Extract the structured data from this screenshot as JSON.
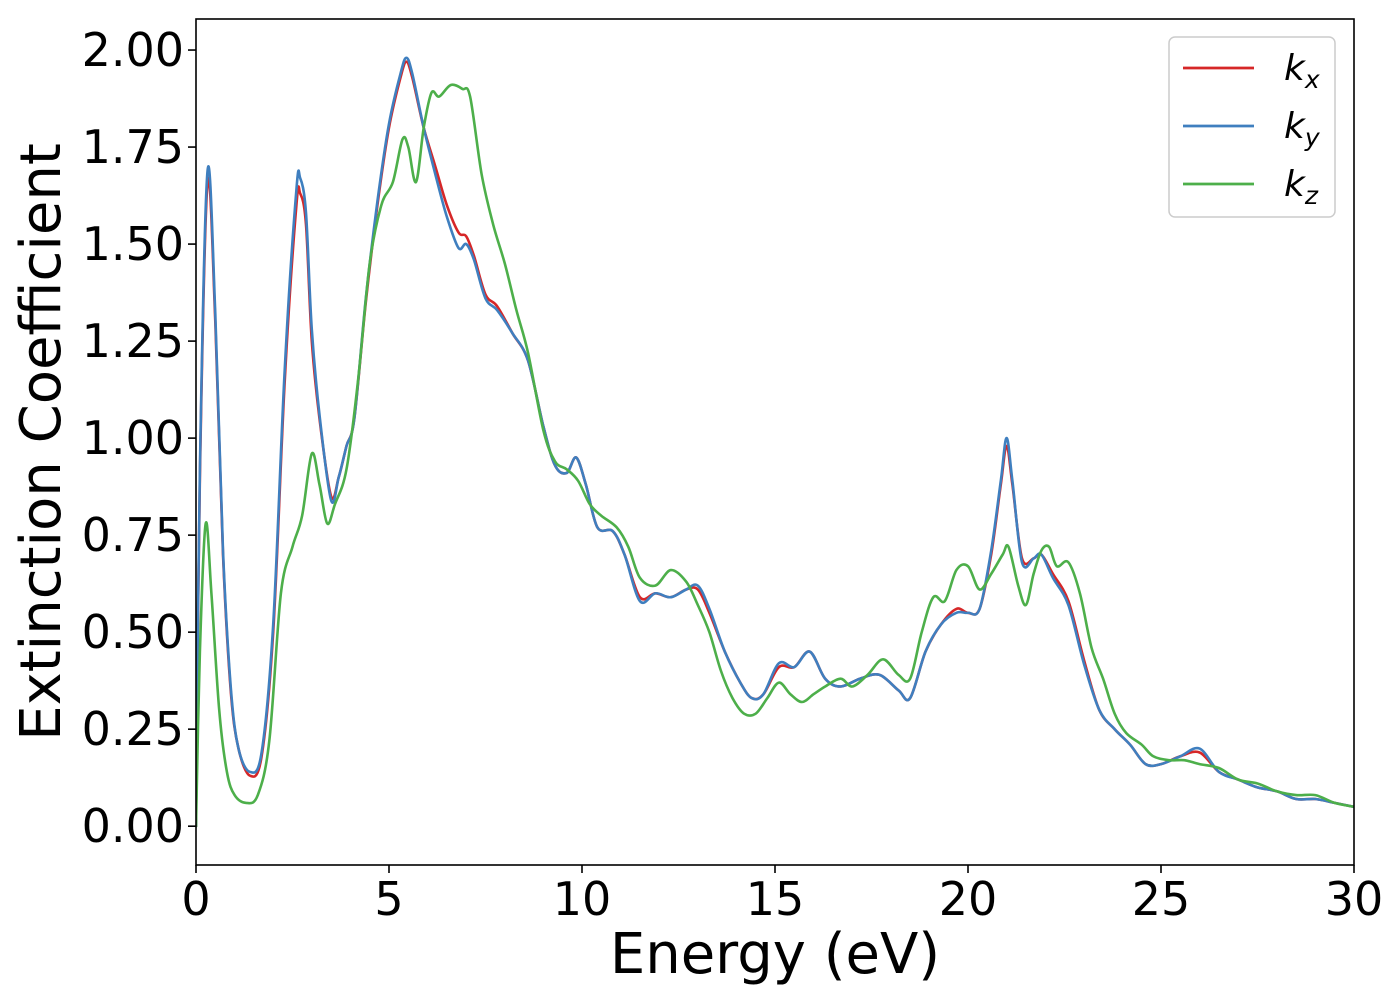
{
  "chart_data": {
    "type": "line",
    "title": "",
    "xlabel": "Energy (eV)",
    "ylabel": "Extinction Coefficient",
    "xlim": [
      0,
      30
    ],
    "ylim": [
      -0.1,
      2.08
    ],
    "xticks": [
      "0",
      "5",
      "10",
      "15",
      "20",
      "25",
      "30"
    ],
    "yticks": [
      "0.00",
      "0.25",
      "0.50",
      "0.75",
      "1.00",
      "1.25",
      "1.50",
      "1.75",
      "2.00"
    ],
    "grid": false,
    "legend_position": "top-right",
    "series": [
      {
        "name": "k",
        "subscript": "x",
        "color": "#d62728",
        "points": [
          [
            0,
            0
          ],
          [
            0.1,
            0.9
          ],
          [
            0.3,
            1.66
          ],
          [
            0.5,
            1.3
          ],
          [
            0.7,
            0.7
          ],
          [
            0.9,
            0.35
          ],
          [
            1.1,
            0.2
          ],
          [
            1.4,
            0.13
          ],
          [
            1.7,
            0.18
          ],
          [
            2.0,
            0.5
          ],
          [
            2.3,
            1.15
          ],
          [
            2.6,
            1.6
          ],
          [
            2.7,
            1.63
          ],
          [
            2.85,
            1.55
          ],
          [
            3.0,
            1.25
          ],
          [
            3.2,
            1.05
          ],
          [
            3.5,
            0.85
          ],
          [
            3.7,
            0.9
          ],
          [
            3.9,
            0.98
          ],
          [
            4.1,
            1.05
          ],
          [
            4.4,
            1.35
          ],
          [
            4.7,
            1.6
          ],
          [
            5.0,
            1.8
          ],
          [
            5.3,
            1.93
          ],
          [
            5.45,
            1.97
          ],
          [
            5.6,
            1.93
          ],
          [
            5.9,
            1.8
          ],
          [
            6.2,
            1.7
          ],
          [
            6.5,
            1.6
          ],
          [
            6.8,
            1.53
          ],
          [
            7.0,
            1.52
          ],
          [
            7.2,
            1.47
          ],
          [
            7.5,
            1.37
          ],
          [
            7.8,
            1.34
          ],
          [
            8.2,
            1.27
          ],
          [
            8.6,
            1.2
          ],
          [
            9.0,
            1.03
          ],
          [
            9.3,
            0.93
          ],
          [
            9.6,
            0.91
          ],
          [
            9.85,
            0.95
          ],
          [
            10.1,
            0.88
          ],
          [
            10.4,
            0.77
          ],
          [
            10.8,
            0.76
          ],
          [
            11.1,
            0.7
          ],
          [
            11.5,
            0.59
          ],
          [
            11.9,
            0.6
          ],
          [
            12.3,
            0.59
          ],
          [
            12.7,
            0.61
          ],
          [
            13.0,
            0.61
          ],
          [
            13.3,
            0.55
          ],
          [
            13.7,
            0.45
          ],
          [
            14.1,
            0.37
          ],
          [
            14.4,
            0.33
          ],
          [
            14.7,
            0.34
          ],
          [
            15.1,
            0.41
          ],
          [
            15.5,
            0.41
          ],
          [
            15.9,
            0.45
          ],
          [
            16.3,
            0.38
          ],
          [
            16.7,
            0.36
          ],
          [
            17.2,
            0.38
          ],
          [
            17.7,
            0.39
          ],
          [
            18.2,
            0.35
          ],
          [
            18.5,
            0.33
          ],
          [
            18.9,
            0.45
          ],
          [
            19.3,
            0.52
          ],
          [
            19.7,
            0.56
          ],
          [
            20.0,
            0.55
          ],
          [
            20.3,
            0.56
          ],
          [
            20.6,
            0.7
          ],
          [
            20.85,
            0.88
          ],
          [
            21.0,
            0.98
          ],
          [
            21.15,
            0.88
          ],
          [
            21.4,
            0.69
          ],
          [
            21.7,
            0.69
          ],
          [
            21.9,
            0.7
          ],
          [
            22.2,
            0.65
          ],
          [
            22.6,
            0.58
          ],
          [
            23.0,
            0.43
          ],
          [
            23.4,
            0.3
          ],
          [
            23.8,
            0.25
          ],
          [
            24.2,
            0.21
          ],
          [
            24.6,
            0.16
          ],
          [
            25.0,
            0.16
          ],
          [
            25.5,
            0.18
          ],
          [
            26.0,
            0.19
          ],
          [
            26.5,
            0.14
          ],
          [
            27.0,
            0.12
          ],
          [
            27.5,
            0.1
          ],
          [
            28.0,
            0.09
          ],
          [
            28.5,
            0.07
          ],
          [
            29.0,
            0.07
          ],
          [
            29.5,
            0.06
          ],
          [
            30.0,
            0.05
          ]
        ]
      },
      {
        "name": "k",
        "subscript": "y",
        "color": "#3f7fbf",
        "points": [
          [
            0,
            0
          ],
          [
            0.1,
            0.92
          ],
          [
            0.3,
            1.69
          ],
          [
            0.5,
            1.32
          ],
          [
            0.7,
            0.71
          ],
          [
            0.9,
            0.36
          ],
          [
            1.1,
            0.2
          ],
          [
            1.4,
            0.14
          ],
          [
            1.7,
            0.19
          ],
          [
            2.0,
            0.52
          ],
          [
            2.3,
            1.18
          ],
          [
            2.6,
            1.64
          ],
          [
            2.7,
            1.67
          ],
          [
            2.85,
            1.58
          ],
          [
            3.0,
            1.28
          ],
          [
            3.2,
            1.06
          ],
          [
            3.5,
            0.84
          ],
          [
            3.7,
            0.9
          ],
          [
            3.9,
            0.98
          ],
          [
            4.1,
            1.05
          ],
          [
            4.4,
            1.36
          ],
          [
            4.7,
            1.61
          ],
          [
            5.0,
            1.81
          ],
          [
            5.3,
            1.94
          ],
          [
            5.45,
            1.98
          ],
          [
            5.6,
            1.94
          ],
          [
            5.9,
            1.8
          ],
          [
            6.2,
            1.68
          ],
          [
            6.5,
            1.57
          ],
          [
            6.8,
            1.49
          ],
          [
            7.0,
            1.5
          ],
          [
            7.2,
            1.46
          ],
          [
            7.5,
            1.36
          ],
          [
            7.8,
            1.33
          ],
          [
            8.2,
            1.27
          ],
          [
            8.6,
            1.2
          ],
          [
            9.0,
            1.03
          ],
          [
            9.3,
            0.93
          ],
          [
            9.6,
            0.91
          ],
          [
            9.85,
            0.95
          ],
          [
            10.1,
            0.88
          ],
          [
            10.4,
            0.77
          ],
          [
            10.8,
            0.76
          ],
          [
            11.1,
            0.7
          ],
          [
            11.5,
            0.58
          ],
          [
            11.9,
            0.6
          ],
          [
            12.3,
            0.59
          ],
          [
            12.7,
            0.61
          ],
          [
            13.0,
            0.62
          ],
          [
            13.3,
            0.56
          ],
          [
            13.7,
            0.45
          ],
          [
            14.1,
            0.37
          ],
          [
            14.4,
            0.33
          ],
          [
            14.7,
            0.34
          ],
          [
            15.1,
            0.42
          ],
          [
            15.5,
            0.41
          ],
          [
            15.9,
            0.45
          ],
          [
            16.3,
            0.38
          ],
          [
            16.7,
            0.36
          ],
          [
            17.2,
            0.38
          ],
          [
            17.7,
            0.39
          ],
          [
            18.2,
            0.35
          ],
          [
            18.5,
            0.33
          ],
          [
            18.9,
            0.45
          ],
          [
            19.3,
            0.52
          ],
          [
            19.7,
            0.55
          ],
          [
            20.0,
            0.55
          ],
          [
            20.3,
            0.56
          ],
          [
            20.6,
            0.71
          ],
          [
            20.85,
            0.89
          ],
          [
            21.0,
            1.0
          ],
          [
            21.15,
            0.89
          ],
          [
            21.4,
            0.68
          ],
          [
            21.7,
            0.69
          ],
          [
            21.9,
            0.7
          ],
          [
            22.2,
            0.64
          ],
          [
            22.6,
            0.57
          ],
          [
            23.0,
            0.42
          ],
          [
            23.4,
            0.3
          ],
          [
            23.8,
            0.25
          ],
          [
            24.2,
            0.21
          ],
          [
            24.6,
            0.16
          ],
          [
            25.0,
            0.16
          ],
          [
            25.5,
            0.18
          ],
          [
            26.0,
            0.2
          ],
          [
            26.5,
            0.14
          ],
          [
            27.0,
            0.12
          ],
          [
            27.5,
            0.1
          ],
          [
            28.0,
            0.09
          ],
          [
            28.5,
            0.07
          ],
          [
            29.0,
            0.07
          ],
          [
            29.5,
            0.06
          ],
          [
            30.0,
            0.05
          ]
        ]
      },
      {
        "name": "k",
        "subscript": "z",
        "color": "#4daf4a",
        "points": [
          [
            0,
            0
          ],
          [
            0.1,
            0.45
          ],
          [
            0.25,
            0.78
          ],
          [
            0.4,
            0.6
          ],
          [
            0.6,
            0.3
          ],
          [
            0.8,
            0.14
          ],
          [
            1.0,
            0.08
          ],
          [
            1.3,
            0.06
          ],
          [
            1.6,
            0.08
          ],
          [
            1.9,
            0.22
          ],
          [
            2.2,
            0.6
          ],
          [
            2.5,
            0.72
          ],
          [
            2.75,
            0.8
          ],
          [
            3.0,
            0.96
          ],
          [
            3.2,
            0.88
          ],
          [
            3.4,
            0.78
          ],
          [
            3.6,
            0.83
          ],
          [
            3.9,
            0.92
          ],
          [
            4.2,
            1.15
          ],
          [
            4.5,
            1.45
          ],
          [
            4.8,
            1.6
          ],
          [
            5.1,
            1.66
          ],
          [
            5.35,
            1.77
          ],
          [
            5.5,
            1.75
          ],
          [
            5.7,
            1.66
          ],
          [
            5.9,
            1.8
          ],
          [
            6.1,
            1.89
          ],
          [
            6.3,
            1.88
          ],
          [
            6.6,
            1.91
          ],
          [
            6.9,
            1.9
          ],
          [
            7.1,
            1.88
          ],
          [
            7.4,
            1.68
          ],
          [
            7.7,
            1.55
          ],
          [
            8.0,
            1.45
          ],
          [
            8.3,
            1.33
          ],
          [
            8.6,
            1.22
          ],
          [
            9.0,
            1.02
          ],
          [
            9.3,
            0.94
          ],
          [
            9.6,
            0.92
          ],
          [
            9.9,
            0.89
          ],
          [
            10.2,
            0.83
          ],
          [
            10.5,
            0.8
          ],
          [
            10.9,
            0.77
          ],
          [
            11.2,
            0.72
          ],
          [
            11.5,
            0.64
          ],
          [
            11.9,
            0.62
          ],
          [
            12.3,
            0.66
          ],
          [
            12.7,
            0.63
          ],
          [
            13.0,
            0.57
          ],
          [
            13.3,
            0.5
          ],
          [
            13.6,
            0.4
          ],
          [
            13.9,
            0.33
          ],
          [
            14.2,
            0.29
          ],
          [
            14.5,
            0.29
          ],
          [
            14.8,
            0.33
          ],
          [
            15.1,
            0.37
          ],
          [
            15.4,
            0.34
          ],
          [
            15.7,
            0.32
          ],
          [
            16.0,
            0.34
          ],
          [
            16.3,
            0.36
          ],
          [
            16.7,
            0.38
          ],
          [
            17.0,
            0.36
          ],
          [
            17.4,
            0.39
          ],
          [
            17.8,
            0.43
          ],
          [
            18.2,
            0.39
          ],
          [
            18.5,
            0.38
          ],
          [
            18.8,
            0.5
          ],
          [
            19.1,
            0.59
          ],
          [
            19.4,
            0.58
          ],
          [
            19.7,
            0.66
          ],
          [
            20.0,
            0.67
          ],
          [
            20.3,
            0.61
          ],
          [
            20.6,
            0.65
          ],
          [
            20.9,
            0.7
          ],
          [
            21.05,
            0.72
          ],
          [
            21.3,
            0.62
          ],
          [
            21.5,
            0.57
          ],
          [
            21.7,
            0.65
          ],
          [
            21.9,
            0.71
          ],
          [
            22.1,
            0.72
          ],
          [
            22.3,
            0.67
          ],
          [
            22.6,
            0.68
          ],
          [
            22.9,
            0.6
          ],
          [
            23.2,
            0.46
          ],
          [
            23.5,
            0.38
          ],
          [
            23.8,
            0.29
          ],
          [
            24.1,
            0.24
          ],
          [
            24.5,
            0.21
          ],
          [
            24.8,
            0.18
          ],
          [
            25.2,
            0.17
          ],
          [
            25.6,
            0.17
          ],
          [
            26.0,
            0.16
          ],
          [
            26.5,
            0.15
          ],
          [
            27.0,
            0.12
          ],
          [
            27.5,
            0.11
          ],
          [
            28.0,
            0.09
          ],
          [
            28.5,
            0.08
          ],
          [
            29.0,
            0.08
          ],
          [
            29.5,
            0.06
          ],
          [
            30.0,
            0.05
          ]
        ]
      }
    ]
  }
}
